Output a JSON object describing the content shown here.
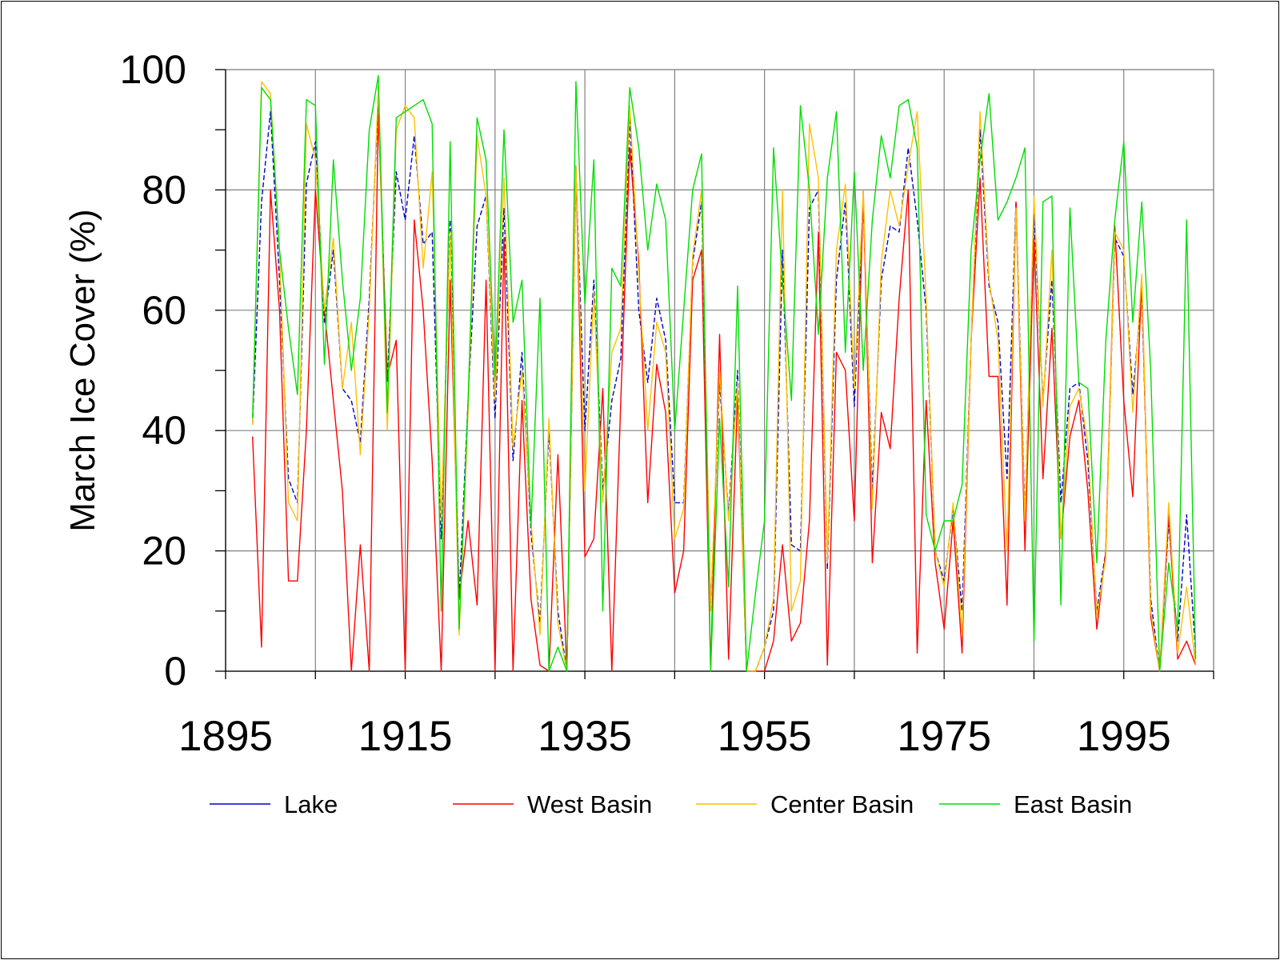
{
  "chart_data": {
    "type": "line",
    "ylabel": "March Ice Cover (%)",
    "xlabel": "",
    "xlim": [
      1895,
      2005
    ],
    "ylim": [
      0,
      100
    ],
    "x_ticks": [
      1895,
      1915,
      1935,
      1955,
      1975,
      1995
    ],
    "y_ticks": [
      0,
      20,
      40,
      60,
      80,
      100
    ],
    "grid": true,
    "legend_position": "bottom",
    "x": [
      1898,
      1899,
      1900,
      1901,
      1902,
      1903,
      1904,
      1905,
      1906,
      1907,
      1908,
      1909,
      1910,
      1911,
      1912,
      1913,
      1914,
      1915,
      1916,
      1917,
      1918,
      1919,
      1920,
      1921,
      1922,
      1923,
      1924,
      1925,
      1926,
      1927,
      1928,
      1929,
      1930,
      1931,
      1932,
      1933,
      1934,
      1935,
      1936,
      1937,
      1938,
      1939,
      1940,
      1941,
      1942,
      1943,
      1944,
      1945,
      1946,
      1947,
      1948,
      1949,
      1950,
      1951,
      1952,
      1953,
      1954,
      1955,
      1956,
      1957,
      1958,
      1959,
      1960,
      1961,
      1962,
      1963,
      1964,
      1965,
      1966,
      1967,
      1968,
      1969,
      1970,
      1971,
      1972,
      1973,
      1974,
      1975,
      1976,
      1977,
      1978,
      1979,
      1980,
      1981,
      1982,
      1983,
      1984,
      1985,
      1986,
      1987,
      1988,
      1989,
      1990,
      1991,
      1992,
      1993,
      1994,
      1995,
      1996,
      1997,
      1998,
      1999,
      2000,
      2001,
      2002,
      2003
    ],
    "series": [
      {
        "name": "Lake",
        "color": "#0000cc",
        "values": [
          41,
          78,
          93,
          65,
          32,
          28,
          81,
          88,
          58,
          70,
          47,
          45,
          38,
          62,
          95,
          48,
          83,
          75,
          89,
          71,
          73,
          22,
          75,
          12,
          45,
          74,
          79,
          42,
          77,
          35,
          53,
          23,
          8,
          40,
          10,
          0,
          83,
          40,
          65,
          30,
          45,
          52,
          92,
          60,
          48,
          62,
          55,
          28,
          28,
          68,
          78,
          10,
          48,
          26,
          50,
          0,
          0,
          4,
          10,
          70,
          21,
          20,
          77,
          80,
          17,
          65,
          78,
          44,
          78,
          30,
          65,
          74,
          73,
          87,
          75,
          60,
          20,
          15,
          27,
          10,
          55,
          90,
          64,
          58,
          32,
          78,
          26,
          76,
          45,
          65,
          28,
          47,
          48,
          35,
          10,
          20,
          72,
          69,
          46,
          63,
          12,
          0,
          25,
          5,
          26,
          3
        ]
      },
      {
        "name": "West Basin",
        "color": "#ff0000",
        "values": [
          39,
          4,
          80,
          60,
          15,
          15,
          40,
          80,
          60,
          45,
          30,
          0,
          21,
          0,
          93,
          49,
          55,
          0,
          75,
          60,
          35,
          0,
          65,
          12,
          25,
          11,
          65,
          0,
          72,
          0,
          45,
          12,
          1,
          0,
          36,
          0,
          84,
          19,
          22,
          47,
          0,
          45,
          87,
          68,
          28,
          51,
          43,
          13,
          20,
          65,
          70,
          0,
          56,
          2,
          46,
          0,
          0,
          0,
          5,
          21,
          5,
          8,
          25,
          73,
          1,
          53,
          50,
          25,
          80,
          18,
          43,
          37,
          62,
          80,
          3,
          45,
          18,
          7,
          25,
          3,
          55,
          82,
          49,
          49,
          11,
          78,
          20,
          72,
          32,
          57,
          22,
          39,
          45,
          30,
          7,
          20,
          74,
          45,
          29,
          65,
          9,
          0,
          26,
          2,
          5,
          1
        ]
      },
      {
        "name": "Center Basin",
        "color": "#ffc000",
        "values": [
          41,
          98,
          96,
          70,
          28,
          25,
          91,
          85,
          60,
          72,
          47,
          58,
          36,
          60,
          97,
          40,
          90,
          94,
          92,
          67,
          83,
          25,
          73,
          6,
          43,
          89,
          79,
          45,
          82,
          37,
          50,
          25,
          6,
          42,
          8,
          0,
          84,
          30,
          63,
          28,
          53,
          57,
          94,
          66,
          40,
          58,
          53,
          22,
          27,
          69,
          80,
          10,
          50,
          25,
          48,
          0,
          0,
          4,
          12,
          80,
          10,
          15,
          91,
          82,
          18,
          70,
          81,
          47,
          80,
          27,
          68,
          80,
          74,
          84,
          93,
          62,
          20,
          14,
          28,
          6,
          55,
          93,
          65,
          55,
          20,
          77,
          25,
          79,
          44,
          70,
          22,
          44,
          47,
          38,
          9,
          19,
          73,
          70,
          43,
          66,
          10,
          0,
          28,
          3,
          14,
          1
        ]
      },
      {
        "name": "East Basin",
        "color": "#00dd00",
        "values": [
          42,
          97,
          95,
          70,
          57,
          46,
          95,
          94,
          51,
          85,
          65,
          50,
          62,
          90,
          99,
          43,
          92,
          93,
          94,
          95,
          91,
          10,
          88,
          7,
          45,
          92,
          85,
          49,
          90,
          58,
          65,
          24,
          62,
          0,
          4,
          0,
          98,
          61,
          85,
          10,
          67,
          64,
          97,
          87,
          70,
          81,
          75,
          40,
          60,
          80,
          86,
          0,
          42,
          14,
          64,
          0,
          13,
          25,
          87,
          65,
          45,
          94,
          80,
          56,
          82,
          93,
          53,
          83,
          50,
          75,
          89,
          82,
          94,
          95,
          87,
          26,
          20,
          25,
          25,
          31,
          70,
          85,
          96,
          75,
          78,
          82,
          87,
          5,
          78,
          79,
          11,
          77,
          48,
          47,
          18,
          55,
          75,
          88,
          58,
          78,
          50,
          0,
          18,
          7,
          75,
          2
        ]
      }
    ]
  }
}
